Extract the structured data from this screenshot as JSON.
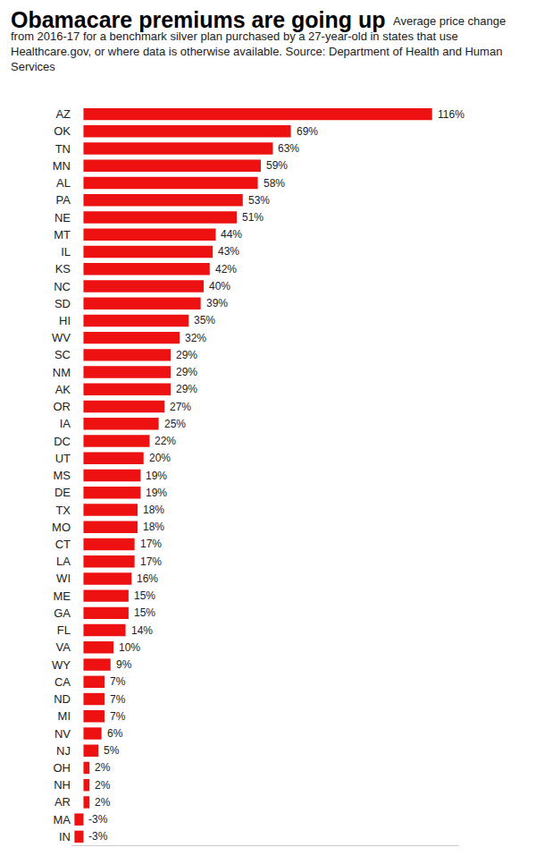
{
  "chart_data": {
    "type": "bar",
    "orientation": "horizontal",
    "title": "Obamacare premiums are going up",
    "subtitle": "Average price change from 2016-17 for a benchmark silver plan purchased by a 27-year-old in states that use Healthcare.gov, or where data is otherwise available. Source: Department of Health and Human Services",
    "categories": [
      "AZ",
      "OK",
      "TN",
      "MN",
      "AL",
      "PA",
      "NE",
      "MT",
      "IL",
      "KS",
      "NC",
      "SD",
      "HI",
      "WV",
      "SC",
      "NM",
      "AK",
      "OR",
      "IA",
      "DC",
      "UT",
      "MS",
      "DE",
      "TX",
      "MO",
      "CT",
      "LA",
      "WI",
      "ME",
      "GA",
      "FL",
      "VA",
      "WY",
      "CA",
      "ND",
      "MI",
      "NV",
      "NJ",
      "OH",
      "NH",
      "AR",
      "MA",
      "IN"
    ],
    "values": [
      116,
      69,
      63,
      59,
      58,
      53,
      51,
      44,
      43,
      42,
      40,
      39,
      35,
      32,
      29,
      29,
      29,
      27,
      25,
      22,
      20,
      19,
      19,
      18,
      18,
      17,
      17,
      16,
      15,
      15,
      14,
      10,
      9,
      7,
      7,
      7,
      6,
      5,
      2,
      2,
      2,
      -3,
      -3
    ],
    "value_labels": [
      "116%",
      "69%",
      "63%",
      "59%",
      "58%",
      "53%",
      "51%",
      "44%",
      "43%",
      "42%",
      "40%",
      "39%",
      "35%",
      "32%",
      "29%",
      "29%",
      "29%",
      "27%",
      "25%",
      "22%",
      "20%",
      "19%",
      "19%",
      "18%",
      "18%",
      "17%",
      "17%",
      "16%",
      "15%",
      "15%",
      "14%",
      "10%",
      "9%",
      "7%",
      "7%",
      "7%",
      "6%",
      "5%",
      "2%",
      "2%",
      "2%",
      "-3%",
      "-3%"
    ],
    "color": "#ee1111",
    "xlim": [
      -4,
      125
    ],
    "xticks": [],
    "grid": false,
    "data_labels": true,
    "tick_labels": "y"
  }
}
